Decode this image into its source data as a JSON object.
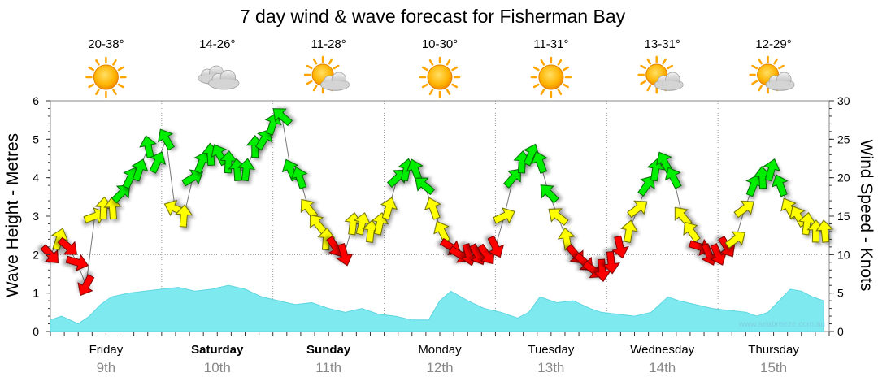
{
  "chart_data": {
    "type": "line",
    "title": "7 day wind & wave forecast for Fisherman Bay",
    "ylabel_left": "Wave Height - Metres",
    "ylabel_right": "Wind Speed - Knots",
    "ylim_left": [
      0,
      6
    ],
    "ylim_right": [
      0,
      30
    ],
    "yticks_left": [
      "0",
      "1",
      "2",
      "3",
      "4",
      "5",
      "6"
    ],
    "yticks_right": [
      "0",
      "5",
      "10",
      "15",
      "20",
      "25",
      "30"
    ],
    "credit": "www.seabreeze.com.au",
    "days": [
      {
        "name": "Friday",
        "date": "9th",
        "temp": "20-38°",
        "icon": "sun-icon",
        "bold": false
      },
      {
        "name": "Saturday",
        "date": "10th",
        "temp": "14-26°",
        "icon": "cloud-icon",
        "bold": true
      },
      {
        "name": "Sunday",
        "date": "11th",
        "temp": "11-28°",
        "icon": "sun-cloud-icon",
        "bold": true
      },
      {
        "name": "Monday",
        "date": "12th",
        "temp": "10-30°",
        "icon": "sun-icon",
        "bold": false
      },
      {
        "name": "Tuesday",
        "date": "13th",
        "temp": "11-31°",
        "icon": "sun-icon",
        "bold": false
      },
      {
        "name": "Wednesday",
        "date": "14th",
        "temp": "13-31°",
        "icon": "sun-cloud-icon",
        "bold": false
      },
      {
        "name": "Thursday",
        "date": "15th",
        "temp": "12-29°",
        "icon": "sun-cloud-icon",
        "bold": false
      }
    ],
    "series": [
      {
        "name": "Wave Height",
        "unit": "m",
        "color": "#7fe9f0",
        "x_days": [
          0,
          0.1,
          0.25,
          0.35,
          0.45,
          0.55,
          0.7,
          0.85,
          1.0,
          1.15,
          1.3,
          1.45,
          1.6,
          1.75,
          1.9,
          2.05,
          2.2,
          2.35,
          2.5,
          2.65,
          2.8,
          2.95,
          3.1,
          3.25,
          3.4,
          3.5,
          3.6,
          3.75,
          3.9,
          4.05,
          4.2,
          4.3,
          4.4,
          4.55,
          4.7,
          4.85,
          4.95,
          5.1,
          5.25,
          5.4,
          5.55,
          5.65,
          5.8,
          5.95,
          6.1,
          6.25,
          6.35,
          6.45,
          6.55,
          6.65,
          6.75,
          6.85,
          6.95
        ],
        "values": [
          0.3,
          0.4,
          0.2,
          0.4,
          0.7,
          0.9,
          1.0,
          1.05,
          1.1,
          1.15,
          1.05,
          1.1,
          1.2,
          1.1,
          0.9,
          0.8,
          0.7,
          0.75,
          0.6,
          0.5,
          0.6,
          0.45,
          0.4,
          0.3,
          0.3,
          0.8,
          1.05,
          0.8,
          0.6,
          0.5,
          0.35,
          0.5,
          0.9,
          0.75,
          0.8,
          0.6,
          0.5,
          0.45,
          0.4,
          0.5,
          0.9,
          0.8,
          0.7,
          0.6,
          0.55,
          0.5,
          0.4,
          0.5,
          0.8,
          1.1,
          1.05,
          0.9,
          0.8
        ]
      },
      {
        "name": "Wind Speed",
        "unit": "knots",
        "x_days": [
          0,
          0.08,
          0.16,
          0.24,
          0.32,
          0.4,
          0.48,
          0.56,
          0.64,
          0.72,
          0.8,
          0.88,
          0.96,
          1.04,
          1.12,
          1.2,
          1.28,
          1.36,
          1.44,
          1.52,
          1.6,
          1.68,
          1.76,
          1.84,
          1.92,
          2.0,
          2.08,
          2.16,
          2.24,
          2.32,
          2.4,
          2.48,
          2.56,
          2.64,
          2.72,
          2.8,
          2.88,
          2.96,
          3.04,
          3.12,
          3.2,
          3.28,
          3.36,
          3.44,
          3.52,
          3.6,
          3.68,
          3.76,
          3.84,
          3.92,
          4.0,
          4.08,
          4.16,
          4.24,
          4.32,
          4.4,
          4.48,
          4.56,
          4.64,
          4.72,
          4.8,
          4.88,
          4.96,
          5.04,
          5.12,
          5.2,
          5.28,
          5.36,
          5.44,
          5.52,
          5.6,
          5.68,
          5.76,
          5.84,
          5.92,
          6.0,
          6.08,
          6.16,
          6.24,
          6.32,
          6.4,
          6.48,
          6.56,
          6.64,
          6.72,
          6.8,
          6.88,
          6.96
        ],
        "values": [
          10,
          12,
          11,
          9,
          6,
          15,
          16,
          16,
          18,
          20,
          21,
          24,
          22,
          25,
          16,
          15,
          20,
          22,
          23,
          23,
          22,
          21,
          21,
          24,
          25,
          27,
          28,
          21,
          20,
          16,
          14,
          12,
          11,
          10,
          14,
          14,
          13,
          14,
          16,
          20,
          21,
          21,
          19,
          16,
          13,
          11,
          10,
          10,
          10,
          10,
          11,
          15,
          20,
          22,
          23,
          22,
          18,
          15,
          12,
          10,
          9,
          8,
          8,
          9,
          11,
          13,
          16,
          19,
          21,
          22,
          20,
          15,
          13,
          11,
          10,
          10,
          11,
          12,
          16,
          19,
          20,
          21,
          19,
          16,
          15,
          14,
          13,
          13
        ]
      }
    ]
  }
}
